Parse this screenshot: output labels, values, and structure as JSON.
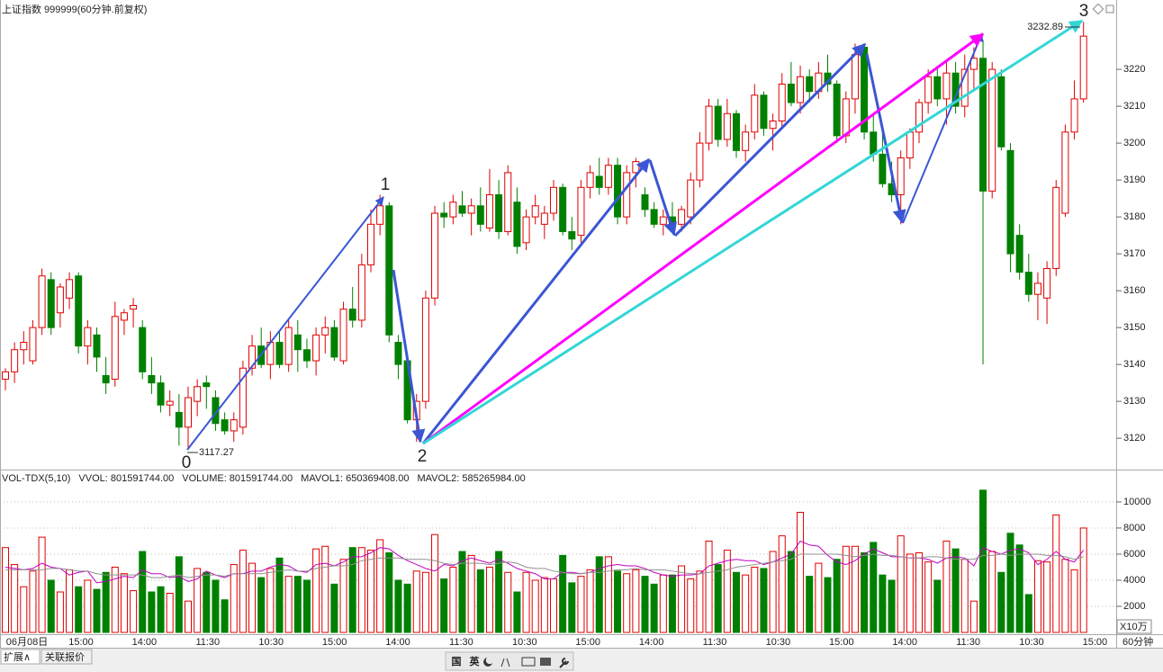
{
  "title": "上证指数 999999(60分钟.前复权)",
  "chart_data": [
    {
      "type": "candlestick",
      "up_color": "#e00000",
      "down_color": "#008000",
      "ylim": [
        3111.5,
        3238.8
      ],
      "yticks": [
        3120,
        3130,
        3140,
        3150,
        3160,
        3170,
        3180,
        3190,
        3200,
        3210,
        3220
      ],
      "wave_labels": [
        "0",
        "1",
        "2",
        "3"
      ],
      "price_labels": [
        "3117.27",
        "3232.89"
      ],
      "ohlc": [
        [
          3136,
          3139,
          3133,
          3138
        ],
        [
          3138,
          3146,
          3135,
          3144
        ],
        [
          3144,
          3149,
          3140,
          3146
        ],
        [
          3141,
          3152,
          3140,
          3150
        ],
        [
          3150,
          3166,
          3148,
          3164
        ],
        [
          3163,
          3165,
          3148,
          3150
        ],
        [
          3154,
          3162,
          3150,
          3161
        ],
        [
          3158,
          3165,
          3155,
          3163
        ],
        [
          3164,
          3165,
          3143,
          3145
        ],
        [
          3145,
          3152,
          3140,
          3150
        ],
        [
          3148,
          3150,
          3138,
          3142
        ],
        [
          3137,
          3142,
          3132,
          3135
        ],
        [
          3136,
          3157,
          3134,
          3153
        ],
        [
          3152,
          3155,
          3148,
          3154
        ],
        [
          3155,
          3158,
          3150,
          3156
        ],
        [
          3150,
          3152,
          3136,
          3138
        ],
        [
          3137,
          3142,
          3132,
          3135
        ],
        [
          3135,
          3137,
          3127,
          3129
        ],
        [
          3129,
          3133,
          3126,
          3130
        ],
        [
          3127,
          3132,
          3118,
          3123
        ],
        [
          3123,
          3134,
          3117.27,
          3131
        ],
        [
          3130,
          3136,
          3126,
          3134
        ],
        [
          3135,
          3137,
          3128,
          3134
        ],
        [
          3131,
          3133,
          3122,
          3124
        ],
        [
          3125,
          3127,
          3121,
          3122
        ],
        [
          3122,
          3127,
          3119,
          3125
        ],
        [
          3123,
          3141,
          3121,
          3139
        ],
        [
          3139,
          3148,
          3137,
          3145
        ],
        [
          3145,
          3150,
          3139,
          3140
        ],
        [
          3140,
          3149,
          3136,
          3146
        ],
        [
          3146,
          3149,
          3139,
          3140
        ],
        [
          3140,
          3152,
          3138,
          3150
        ],
        [
          3148,
          3152,
          3138,
          3144
        ],
        [
          3144,
          3147,
          3139,
          3141
        ],
        [
          3141,
          3150,
          3137,
          3148
        ],
        [
          3148,
          3153,
          3143,
          3150
        ],
        [
          3150,
          3152,
          3141,
          3142
        ],
        [
          3141,
          3157,
          3140,
          3155
        ],
        [
          3155,
          3161,
          3150,
          3152
        ],
        [
          3152,
          3170,
          3150,
          3167
        ],
        [
          3167,
          3182,
          3165,
          3178
        ],
        [
          3178,
          3186,
          3175,
          3183
        ],
        [
          3183,
          3184,
          3146,
          3148
        ],
        [
          3146,
          3148,
          3136,
          3140
        ],
        [
          3141,
          3143,
          3124,
          3125
        ],
        [
          3125,
          3132,
          3119,
          3130
        ],
        [
          3130,
          3160,
          3128,
          3158
        ],
        [
          3158,
          3183,
          3156,
          3181
        ],
        [
          3181,
          3184,
          3177,
          3180
        ],
        [
          3180,
          3186,
          3178,
          3184
        ],
        [
          3183,
          3187,
          3180,
          3181
        ],
        [
          3181,
          3185,
          3175,
          3183
        ],
        [
          3183,
          3188,
          3176,
          3178
        ],
        [
          3177,
          3193,
          3176,
          3186
        ],
        [
          3186,
          3190,
          3174,
          3176
        ],
        [
          3176,
          3194,
          3175,
          3192
        ],
        [
          3184,
          3188,
          3170,
          3172
        ],
        [
          3173,
          3182,
          3171,
          3180
        ],
        [
          3180,
          3186,
          3178,
          3183
        ],
        [
          3178,
          3183,
          3174,
          3181
        ],
        [
          3181,
          3190,
          3179,
          3188
        ],
        [
          3188,
          3189,
          3175,
          3176
        ],
        [
          3176,
          3180,
          3171,
          3174
        ],
        [
          3175,
          3190,
          3173,
          3188
        ],
        [
          3188,
          3194,
          3185,
          3192
        ],
        [
          3191,
          3196,
          3186,
          3188
        ],
        [
          3188,
          3196,
          3186,
          3194
        ],
        [
          3194,
          3196,
          3178,
          3180
        ],
        [
          3180,
          3194,
          3178,
          3192
        ],
        [
          3192,
          3196,
          3188,
          3195
        ],
        [
          3186,
          3188,
          3180,
          3182
        ],
        [
          3182,
          3184,
          3177,
          3178
        ],
        [
          3178,
          3182,
          3175,
          3180
        ],
        [
          3180,
          3184,
          3176,
          3178
        ],
        [
          3178,
          3183,
          3176,
          3182
        ],
        [
          3180,
          3192,
          3178,
          3190
        ],
        [
          3190,
          3203,
          3188,
          3200
        ],
        [
          3200,
          3212,
          3198,
          3210
        ],
        [
          3210,
          3212,
          3199,
          3201
        ],
        [
          3201,
          3212,
          3199,
          3208
        ],
        [
          3208,
          3209,
          3196,
          3198
        ],
        [
          3198,
          3205,
          3195,
          3203
        ],
        [
          3203,
          3216,
          3201,
          3213
        ],
        [
          3213,
          3214,
          3202,
          3204
        ],
        [
          3204,
          3208,
          3198,
          3206
        ],
        [
          3206,
          3219,
          3204,
          3216
        ],
        [
          3216,
          3222,
          3210,
          3211
        ],
        [
          3211,
          3221,
          3208,
          3218
        ],
        [
          3218,
          3220,
          3211,
          3214
        ],
        [
          3214,
          3222,
          3212,
          3219
        ],
        [
          3219,
          3224,
          3214,
          3216
        ],
        [
          3216,
          3217,
          3200,
          3202
        ],
        [
          3202,
          3214,
          3200,
          3212
        ],
        [
          3212,
          3227,
          3208,
          3224
        ],
        [
          3226,
          3227,
          3201,
          3203
        ],
        [
          3203,
          3208,
          3195,
          3197
        ],
        [
          3197,
          3205,
          3188,
          3189
        ],
        [
          3189,
          3195,
          3184,
          3186
        ],
        [
          3186,
          3198,
          3178,
          3196
        ],
        [
          3196,
          3204,
          3193,
          3203
        ],
        [
          3203,
          3212,
          3200,
          3211
        ],
        [
          3211,
          3220,
          3208,
          3218
        ],
        [
          3218,
          3221,
          3210,
          3212
        ],
        [
          3212,
          3222,
          3205,
          3219
        ],
        [
          3219,
          3222,
          3208,
          3210
        ],
        [
          3210,
          3224,
          3207,
          3220
        ],
        [
          3220,
          3226,
          3214,
          3223
        ],
        [
          3223,
          3228,
          3140,
          3187
        ],
        [
          3187,
          3222,
          3185,
          3220
        ],
        [
          3218,
          3220,
          3198,
          3199
        ],
        [
          3198,
          3200,
          3165,
          3170
        ],
        [
          3175,
          3178,
          3163,
          3165
        ],
        [
          3165,
          3170,
          3157,
          3159
        ],
        [
          3159,
          3165,
          3152,
          3162
        ],
        [
          3158,
          3168,
          3151,
          3166
        ],
        [
          3166,
          3190,
          3164,
          3188
        ],
        [
          3181,
          3205,
          3180,
          3203
        ],
        [
          3203,
          3217,
          3201,
          3212
        ],
        [
          3212,
          3232.89,
          3211,
          3229
        ]
      ]
    },
    {
      "type": "bar",
      "header": [
        {
          "text": "VOL-TDX(5,10)",
          "color": "#333333"
        },
        {
          "text": "VVOL: 801591744.00",
          "color": "#000080"
        },
        {
          "text": "VOLUME: 801591744.00",
          "color": "#c000c0"
        },
        {
          "text": "MAVOL1: 650369408.00",
          "color": "#c000c0"
        },
        {
          "text": "MAVOL2: 585265984.00",
          "color": "#808080"
        }
      ],
      "unit": "X10万",
      "ylim": [
        0,
        12270
      ],
      "yticks": [
        2000,
        4000,
        6000,
        8000,
        10000
      ],
      "grid": true,
      "values": [
        6500,
        5200,
        3500,
        4700,
        7300,
        4000,
        3100,
        4800,
        3500,
        4000,
        3300,
        4600,
        5000,
        4500,
        3200,
        6200,
        3100,
        3500,
        3000,
        5800,
        2400,
        4900,
        4600,
        4000,
        2500,
        5200,
        6300,
        5300,
        4200,
        4900,
        5700,
        4300,
        4300,
        4000,
        6400,
        6600,
        3700,
        5600,
        6500,
        6500,
        6300,
        7100,
        6100,
        4000,
        3700,
        4700,
        4600,
        7500,
        4100,
        5000,
        6200,
        5900,
        4800,
        5000,
        6200,
        4600,
        3100,
        4600,
        4000,
        4200,
        4100,
        5900,
        3800,
        4300,
        4800,
        5800,
        5800,
        4700,
        4500,
        4800,
        4300,
        3700,
        4400,
        4400,
        5100,
        4100,
        4700,
        7000,
        5200,
        6300,
        4600,
        4400,
        5000,
        4900,
        6200,
        7400,
        6200,
        9200,
        4300,
        5300,
        4200,
        5600,
        6600,
        6600,
        6100,
        6900,
        4400,
        4000,
        7400,
        6000,
        6100,
        5400,
        4000,
        7000,
        6400,
        5600,
        2400,
        10900,
        6200,
        4600,
        7600,
        6700,
        2900,
        5500,
        5400,
        9000,
        5600,
        4800,
        8000
      ],
      "lines": [
        {
          "color": "#c000c0",
          "values": [
            5000,
            4900,
            4800,
            4900,
            5300,
            5000,
            4900,
            4400,
            4600,
            4700,
            3800,
            3900,
            4100,
            4300,
            4200,
            4800,
            4500,
            4500,
            4200,
            4300,
            3900,
            4100,
            4700,
            4400,
            4200,
            4500,
            4500,
            4700,
            4700,
            5000,
            5200,
            5100,
            4700,
            4600,
            5200,
            5300,
            5100,
            5400,
            5800,
            5800,
            6100,
            6500,
            6400,
            5900,
            5500,
            5200,
            4900,
            4700,
            5200,
            5100,
            5500,
            5700,
            5500,
            5300,
            5600,
            5300,
            4900,
            4700,
            4500,
            4100,
            4100,
            4600,
            4600,
            4500,
            4600,
            4900,
            5100,
            5200,
            5100,
            5100,
            4900,
            4600,
            4400,
            4300,
            4400,
            4400,
            4500,
            5100,
            5300,
            5500,
            5600,
            5500,
            5500,
            5200,
            5400,
            5700,
            6000,
            7000,
            6700,
            6600,
            5900,
            5400,
            5200,
            5500,
            6000,
            6400,
            6100,
            5800,
            5800,
            5700,
            5700,
            5600,
            5300,
            5700,
            5800,
            5700,
            5100,
            6500,
            6200,
            6000,
            6300,
            6400,
            6100,
            5200,
            5600,
            6200,
            5600,
            5400,
            6300
          ]
        },
        {
          "color": "#909090",
          "values": [
            4800,
            4800,
            4800,
            4800,
            4800,
            4900,
            4900,
            4800,
            4700,
            4700,
            4500,
            4400,
            4400,
            4400,
            4400,
            4400,
            4200,
            4200,
            4300,
            4400,
            4200,
            4300,
            4400,
            4400,
            4300,
            4500,
            4500,
            4500,
            4500,
            4600,
            4700,
            4800,
            4700,
            4700,
            4900,
            5000,
            5100,
            5100,
            5200,
            5500,
            5600,
            5700,
            5700,
            5700,
            5600,
            5600,
            5600,
            5500,
            5300,
            5200,
            5300,
            5300,
            5300,
            5200,
            5300,
            5400,
            5300,
            5000,
            4900,
            4900,
            4700,
            4600,
            4500,
            4500,
            4600,
            4600,
            4700,
            4800,
            4800,
            4900,
            4800,
            4800,
            4800,
            4700,
            4600,
            4500,
            4500,
            4600,
            4700,
            4800,
            5000,
            5100,
            5200,
            5300,
            5400,
            5500,
            5600,
            6000,
            6000,
            6000,
            6000,
            6000,
            5900,
            5800,
            5900,
            6000,
            5900,
            5900,
            5800,
            5700,
            5700,
            5800,
            5800,
            5700,
            5600,
            5600,
            5600,
            5900,
            5900,
            6000,
            5900,
            6000,
            6000,
            6000,
            5900,
            5900,
            5800,
            5600,
            5800
          ]
        }
      ]
    }
  ],
  "time_axis": {
    "labels": [
      "06月08日",
      "15:00",
      "14:00",
      "11:30",
      "10:30",
      "15:00",
      "14:00",
      "11:30",
      "10:30",
      "15:00",
      "14:00",
      "11:30",
      "10:30",
      "15:00",
      "14:00",
      "11:30",
      "10:30",
      "15:00"
    ],
    "period": "60分钟"
  },
  "toolbar": {
    "tabs": [
      "扩展∧",
      "关联报价"
    ],
    "buttons": [
      "国",
      "英"
    ]
  }
}
